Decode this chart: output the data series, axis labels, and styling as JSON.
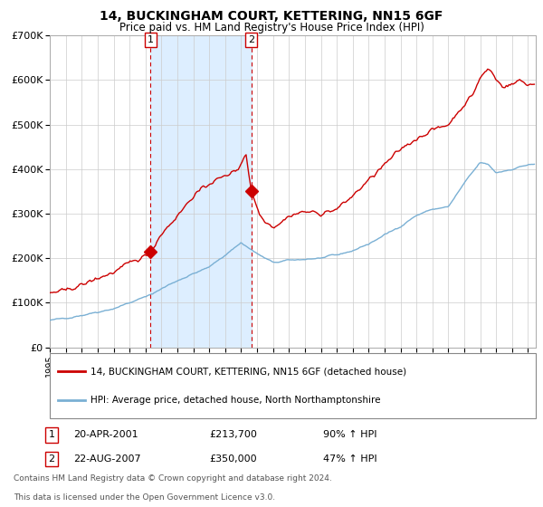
{
  "title": "14, BUCKINGHAM COURT, KETTERING, NN15 6GF",
  "subtitle": "Price paid vs. HM Land Registry's House Price Index (HPI)",
  "legend_line1": "14, BUCKINGHAM COURT, KETTERING, NN15 6GF (detached house)",
  "legend_line2": "HPI: Average price, detached house, North Northamptonshire",
  "footnote1": "Contains HM Land Registry data © Crown copyright and database right 2024.",
  "footnote2": "This data is licensed under the Open Government Licence v3.0.",
  "transaction1_label": "20-APR-2001",
  "transaction1_price": "£213,700",
  "transaction1_hpi": "90% ↑ HPI",
  "transaction2_label": "22-AUG-2007",
  "transaction2_price": "£350,000",
  "transaction2_hpi": "47% ↑ HPI",
  "hpi_color": "#7ab0d4",
  "price_color": "#cc0000",
  "shade_color": "#ddeeff",
  "marker_color": "#cc0000",
  "grid_color": "#cccccc",
  "ylim": [
    0,
    700000
  ],
  "yticks": [
    0,
    100000,
    200000,
    300000,
    400000,
    500000,
    600000,
    700000
  ],
  "ytick_labels": [
    "£0",
    "£100K",
    "£200K",
    "£300K",
    "£400K",
    "£500K",
    "£600K",
    "£700K"
  ],
  "transaction1_x": 2001.31,
  "transaction1_y": 213700,
  "transaction2_x": 2007.64,
  "transaction2_y": 350000,
  "xmin": 1995.0,
  "xmax": 2025.5
}
